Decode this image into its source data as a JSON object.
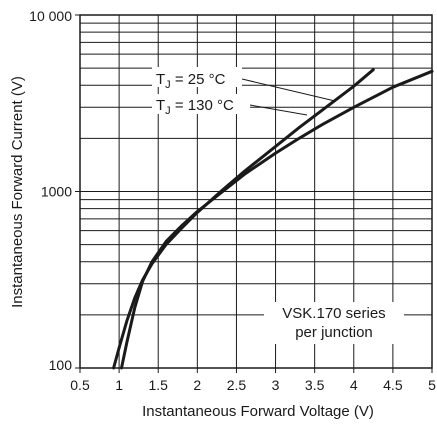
{
  "chart_data": {
    "type": "line",
    "title": "",
    "xlabel": "Instantaneous Forward Voltage (V)",
    "ylabel": "Instantaneous Forward Current (V)",
    "xlim": [
      0.5,
      5
    ],
    "ylim": [
      100,
      10000
    ],
    "yscale": "log",
    "grid": true,
    "x_ticks": [
      0.5,
      1,
      1.5,
      2,
      2.5,
      3,
      3.5,
      4,
      4.5,
      5
    ],
    "x_tick_labels": [
      "0.5",
      "1",
      "1.5",
      "2",
      "2.5",
      "3",
      "3.5",
      "4",
      "4.5",
      "5"
    ],
    "y_ticks": [
      100,
      1000,
      10000
    ],
    "y_tick_labels": [
      "100",
      "1000",
      "10 000"
    ],
    "series": [
      {
        "label_main": "T",
        "label_sub": "J",
        "label_rest": " = 25 °C",
        "color": "#1a1a1a",
        "x": [
          0.93,
          1.0,
          1.1,
          1.2,
          1.3,
          1.42,
          1.6,
          1.8,
          2.0,
          2.3,
          2.6,
          3.0,
          3.3,
          3.6,
          4.0,
          4.25
        ],
        "y": [
          100,
          130,
          185,
          250,
          315,
          390,
          500,
          620,
          760,
          1000,
          1300,
          1800,
          2300,
          2900,
          3950,
          4900
        ]
      },
      {
        "label_main": "T",
        "label_sub": "J",
        "label_rest": " = 130 °C",
        "color": "#1a1a1a",
        "x": [
          1.03,
          1.1,
          1.2,
          1.3,
          1.42,
          1.6,
          1.8,
          2.0,
          2.3,
          2.6,
          3.0,
          3.3,
          3.6,
          4.0,
          4.5,
          5.0
        ],
        "y": [
          100,
          140,
          220,
          310,
          400,
          520,
          640,
          770,
          980,
          1250,
          1650,
          2000,
          2400,
          3000,
          3900,
          4800
        ]
      }
    ],
    "annotation_lines": [
      "VSK.170 series",
      "per junction"
    ]
  }
}
